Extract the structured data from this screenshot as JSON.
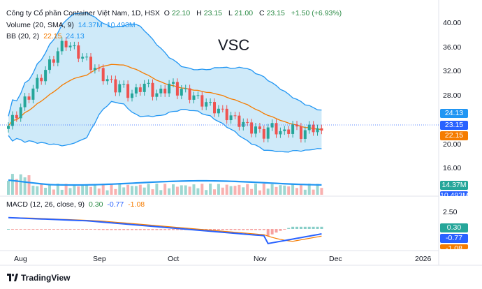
{
  "header": {
    "symbol_title": "Công ty Cổ phần Container Việt Nam, 1D, HSX",
    "o_label": "O",
    "o_value": "22.10",
    "h_label": "H",
    "h_value": "23.15",
    "l_label": "L",
    "l_value": "21.00",
    "c_label": "C",
    "c_value": "23.15",
    "change": "+1.50 (+6.93%)"
  },
  "volume_legend": {
    "label": "Volume (20, SMA, 9)",
    "v1": "14.37M",
    "v2": "10.493M"
  },
  "bb_legend": {
    "label": "BB (20, 2)",
    "v1": "22.15",
    "v2": "24.13"
  },
  "macd_legend": {
    "label": "MACD (12, 26, close, 9)",
    "v1": "0.30",
    "v2": "-0.77",
    "v3": "-1.08"
  },
  "watermark": "VSC",
  "price_axis": [
    "40.00",
    "36.00",
    "32.00",
    "28.00",
    "20.00",
    "16.00"
  ],
  "price_tags": {
    "upper": "24.13",
    "close": "23.15",
    "lower": "22.15",
    "volume": "14.37M",
    "volume_partial": "10.493M"
  },
  "macd_axis": [
    "2.50",
    "-2.50"
  ],
  "macd_tags": {
    "hist": "0.30",
    "macd": "-0.77",
    "signal": "-1.08"
  },
  "x_labels": [
    "Aug",
    "Sep",
    "Oct",
    "Nov",
    "Dec",
    "2026"
  ],
  "footer": {
    "brand": "TradingView"
  },
  "colors": {
    "up": "#26a69a",
    "down": "#ef5350",
    "bb_fill": "#bfe3f7",
    "bb_line": "#2196f3",
    "mid": "#f57c00",
    "macd": "#2962ff",
    "signal": "#f57c00"
  }
}
